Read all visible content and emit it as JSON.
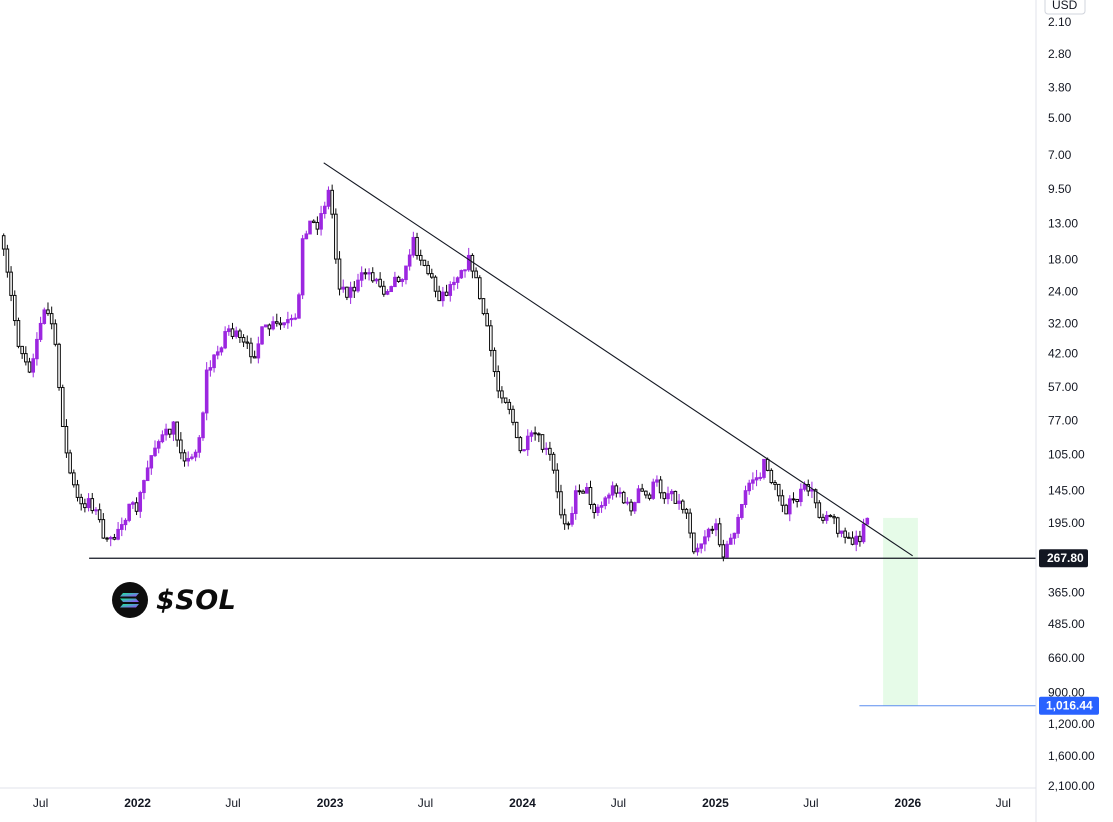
{
  "currency_label": "USD",
  "ticker_label": "$SOL",
  "icons": {
    "logo": "solana-logo-icon"
  },
  "colors": {
    "candle_up": "#0b0b0b",
    "candle_down": "#9c27e0",
    "trendline": "#131722",
    "support_line": "#131722",
    "target_zone": "#e6fbe8",
    "target_line": "#5b8def",
    "badge_current_bg": "#131722",
    "badge_target_bg": "#2962ff"
  },
  "chart_data": {
    "type": "candlestick",
    "symbol": "$SOL",
    "price_scale": "log",
    "scale_inverted": true,
    "currency": "USD",
    "ylim": [
      2.1,
      2100
    ],
    "xlim": [
      "2021-04-15",
      "2026-09-01"
    ],
    "y_ticks": [
      "2.10",
      "2.80",
      "3.80",
      "5.00",
      "7.00",
      "9.50",
      "13.00",
      "18.00",
      "24.00",
      "32.00",
      "42.00",
      "57.00",
      "77.00",
      "105.00",
      "145.00",
      "195.00",
      "365.00",
      "485.00",
      "660.00",
      "900.00",
      "1,200.00",
      "1,600.00",
      "2,100.00"
    ],
    "x_ticks": [
      {
        "date": "2021-07-01",
        "label": "Jul"
      },
      {
        "date": "2022-01-01",
        "label": "2022"
      },
      {
        "date": "2022-07-01",
        "label": "Jul"
      },
      {
        "date": "2023-01-01",
        "label": "2023"
      },
      {
        "date": "2023-07-01",
        "label": "Jul"
      },
      {
        "date": "2024-01-01",
        "label": "2024"
      },
      {
        "date": "2024-07-01",
        "label": "Jul"
      },
      {
        "date": "2025-01-01",
        "label": "2025"
      },
      {
        "date": "2025-07-01",
        "label": "Jul"
      },
      {
        "date": "2026-01-01",
        "label": "2026"
      },
      {
        "date": "2026-07-01",
        "label": "Jul"
      }
    ],
    "current_price_label": "267.80",
    "target_price_label": "1,016.44",
    "current_price": 267.8,
    "target_price": 1016.44,
    "support_line": {
      "price": 267.8,
      "from": "2021-10-01",
      "to": "2026-09-01"
    },
    "trendline": {
      "from": {
        "date": "2022-12-20",
        "price": 7.5
      },
      "to": {
        "date": "2026-01-10",
        "price": 262
      }
    },
    "target_zone": {
      "from": "2025-11-15",
      "to": "2026-01-20",
      "price_top": 186,
      "price_bottom": 1016.44
    },
    "anchors": [
      [
        "2021-04-15",
        14.5
      ],
      [
        "2021-05-01",
        22
      ],
      [
        "2021-05-20",
        38
      ],
      [
        "2021-06-10",
        48
      ],
      [
        "2021-06-25",
        36
      ],
      [
        "2021-07-10",
        28
      ],
      [
        "2021-07-25",
        33
      ],
      [
        "2021-08-01",
        48
      ],
      [
        "2021-08-20",
        110
      ],
      [
        "2021-09-05",
        150
      ],
      [
        "2021-09-15",
        170
      ],
      [
        "2021-10-01",
        155
      ],
      [
        "2021-10-20",
        190
      ],
      [
        "2021-11-05",
        240
      ],
      [
        "2021-11-15",
        230
      ],
      [
        "2021-12-01",
        190
      ],
      [
        "2021-12-15",
        175
      ],
      [
        "2021-12-31",
        170
      ],
      [
        "2022-01-15",
        130
      ],
      [
        "2022-02-01",
        95
      ],
      [
        "2022-02-20",
        90
      ],
      [
        "2022-03-10",
        82
      ],
      [
        "2022-03-25",
        100
      ],
      [
        "2022-04-10",
        115
      ],
      [
        "2022-05-01",
        85
      ],
      [
        "2022-05-12",
        50
      ],
      [
        "2022-06-01",
        42
      ],
      [
        "2022-06-20",
        33
      ],
      [
        "2022-07-05",
        36
      ],
      [
        "2022-07-25",
        40
      ],
      [
        "2022-08-10",
        42
      ],
      [
        "2022-08-25",
        35
      ],
      [
        "2022-09-10",
        33
      ],
      [
        "2022-09-25",
        33
      ],
      [
        "2022-10-10",
        32
      ],
      [
        "2022-11-01",
        32
      ],
      [
        "2022-11-08",
        15
      ],
      [
        "2022-11-20",
        13
      ],
      [
        "2022-12-10",
        13
      ],
      [
        "2022-12-20",
        11
      ],
      [
        "2022-12-29",
        9.8
      ],
      [
        "2023-01-08",
        13
      ],
      [
        "2023-01-15",
        22
      ],
      [
        "2023-02-01",
        24
      ],
      [
        "2023-02-20",
        23
      ],
      [
        "2023-03-10",
        20
      ],
      [
        "2023-03-25",
        21
      ],
      [
        "2023-04-15",
        24
      ],
      [
        "2023-04-25",
        22
      ],
      [
        "2023-05-10",
        21
      ],
      [
        "2023-05-25",
        20
      ],
      [
        "2023-06-05",
        15
      ],
      [
        "2023-06-12",
        16
      ],
      [
        "2023-06-25",
        18
      ],
      [
        "2023-07-10",
        21
      ],
      [
        "2023-07-25",
        25
      ],
      [
        "2023-08-10",
        24
      ],
      [
        "2023-08-25",
        21
      ],
      [
        "2023-09-10",
        19
      ],
      [
        "2023-09-25",
        18
      ],
      [
        "2023-10-05",
        22
      ],
      [
        "2023-10-20",
        30
      ],
      [
        "2023-11-01",
        40
      ],
      [
        "2023-11-15",
        58
      ],
      [
        "2023-11-25",
        60
      ],
      [
        "2023-12-10",
        70
      ],
      [
        "2023-12-25",
        105
      ],
      [
        "2024-01-10",
        95
      ],
      [
        "2024-01-25",
        88
      ],
      [
        "2024-02-10",
        100
      ],
      [
        "2024-02-25",
        110
      ],
      [
        "2024-03-10",
        165
      ],
      [
        "2024-03-18",
        190
      ],
      [
        "2024-04-01",
        185
      ],
      [
        "2024-04-15",
        140
      ],
      [
        "2024-05-01",
        145
      ],
      [
        "2024-05-15",
        170
      ],
      [
        "2024-06-01",
        165
      ],
      [
        "2024-06-15",
        145
      ],
      [
        "2024-07-01",
        140
      ],
      [
        "2024-07-15",
        170
      ],
      [
        "2024-08-01",
        165
      ],
      [
        "2024-08-10",
        145
      ],
      [
        "2024-08-25",
        155
      ],
      [
        "2024-09-10",
        135
      ],
      [
        "2024-09-25",
        150
      ],
      [
        "2024-10-10",
        145
      ],
      [
        "2024-10-25",
        165
      ],
      [
        "2024-11-05",
        170
      ],
      [
        "2024-11-15",
        210
      ],
      [
        "2024-11-22",
        245
      ],
      [
        "2024-12-05",
        230
      ],
      [
        "2024-12-20",
        200
      ],
      [
        "2025-01-05",
        210
      ],
      [
        "2025-01-18",
        260
      ],
      [
        "2025-02-01",
        220
      ],
      [
        "2025-02-15",
        185
      ],
      [
        "2025-02-28",
        145
      ],
      [
        "2025-03-10",
        130
      ],
      [
        "2025-03-25",
        130
      ],
      [
        "2025-04-07",
        110
      ],
      [
        "2025-04-20",
        140
      ],
      [
        "2025-05-01",
        150
      ],
      [
        "2025-05-15",
        170
      ],
      [
        "2025-06-01",
        160
      ],
      [
        "2025-06-15",
        148
      ],
      [
        "2025-06-25",
        140
      ],
      [
        "2025-07-10",
        160
      ],
      [
        "2025-07-22",
        190
      ],
      [
        "2025-08-01",
        170
      ],
      [
        "2025-08-15",
        195
      ],
      [
        "2025-08-28",
        210
      ],
      [
        "2025-09-10",
        230
      ],
      [
        "2025-09-20",
        240
      ],
      [
        "2025-10-01",
        225
      ],
      [
        "2025-10-10",
        185
      ],
      [
        "2025-10-17",
        188
      ]
    ]
  }
}
